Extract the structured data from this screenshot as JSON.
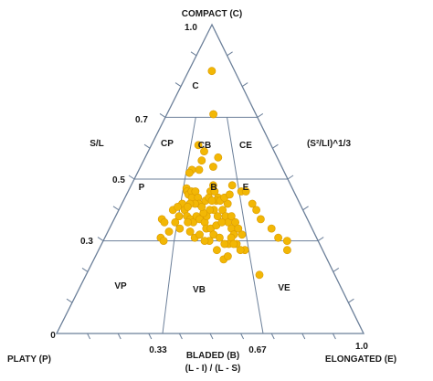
{
  "chart_data": {
    "type": "scatter",
    "title": "",
    "apex_labels": {
      "top": "COMPACT (C)",
      "left": "PLATY (P)",
      "right": "ELONGATED (E)"
    },
    "bottom_axis": {
      "label": "BLADED (B)",
      "sublabel": "(L - I) / (L - S)",
      "ticks": [
        "0",
        "0.33",
        "0.67",
        "1.0"
      ]
    },
    "left_axis": {
      "label": "S/L",
      "ticks": [
        "1.0",
        "0.7",
        "0.5",
        "0.3"
      ]
    },
    "right_axis": {
      "label": "(S²/LI)^1/3"
    },
    "regions": [
      "C",
      "CP",
      "CB",
      "CE",
      "P",
      "B",
      "E",
      "VP",
      "VB",
      "VE"
    ],
    "colors": {
      "points": "#f2b705",
      "point_edge": "#d99a00",
      "lines": "#6b7f99"
    },
    "xlim": [
      0,
      1
    ],
    "ylim": [
      0,
      1
    ],
    "points": [
      [
        0.503,
        0.85
      ],
      [
        0.522,
        0.71
      ],
      [
        0.392,
        0.61
      ],
      [
        0.444,
        0.59
      ],
      [
        0.43,
        0.56
      ],
      [
        0.553,
        0.57
      ],
      [
        0.417,
        0.53
      ],
      [
        0.367,
        0.53
      ],
      [
        0.353,
        0.52
      ],
      [
        0.515,
        0.54
      ],
      [
        0.633,
        0.48
      ],
      [
        0.683,
        0.46
      ],
      [
        0.35,
        0.47
      ],
      [
        0.356,
        0.46
      ],
      [
        0.367,
        0.45
      ],
      [
        0.383,
        0.46
      ],
      [
        0.389,
        0.44
      ],
      [
        0.406,
        0.46
      ],
      [
        0.425,
        0.44
      ],
      [
        0.433,
        0.42
      ],
      [
        0.411,
        0.42
      ],
      [
        0.383,
        0.42
      ],
      [
        0.339,
        0.42
      ],
      [
        0.358,
        0.4
      ],
      [
        0.319,
        0.36
      ],
      [
        0.294,
        0.4
      ],
      [
        0.317,
        0.41
      ],
      [
        0.375,
        0.38
      ],
      [
        0.394,
        0.37
      ],
      [
        0.411,
        0.36
      ],
      [
        0.425,
        0.38
      ],
      [
        0.442,
        0.37
      ],
      [
        0.469,
        0.36
      ],
      [
        0.478,
        0.34
      ],
      [
        0.5,
        0.34
      ],
      [
        0.514,
        0.32
      ],
      [
        0.494,
        0.3
      ],
      [
        0.472,
        0.3
      ],
      [
        0.497,
        0.46
      ],
      [
        0.514,
        0.48
      ],
      [
        0.522,
        0.46
      ],
      [
        0.542,
        0.44
      ],
      [
        0.531,
        0.43
      ],
      [
        0.553,
        0.43
      ],
      [
        0.564,
        0.4
      ],
      [
        0.578,
        0.38
      ],
      [
        0.589,
        0.36
      ],
      [
        0.603,
        0.34
      ],
      [
        0.611,
        0.32
      ],
      [
        0.597,
        0.31
      ],
      [
        0.583,
        0.29
      ],
      [
        0.564,
        0.29
      ],
      [
        0.542,
        0.31
      ],
      [
        0.528,
        0.35
      ],
      [
        0.556,
        0.36
      ],
      [
        0.536,
        0.38
      ],
      [
        0.517,
        0.4
      ],
      [
        0.494,
        0.4
      ],
      [
        0.478,
        0.38
      ],
      [
        0.461,
        0.39
      ],
      [
        0.45,
        0.41
      ],
      [
        0.469,
        0.43
      ],
      [
        0.488,
        0.44
      ],
      [
        0.506,
        0.43
      ],
      [
        0.608,
        0.38
      ],
      [
        0.625,
        0.36
      ],
      [
        0.636,
        0.34
      ],
      [
        0.65,
        0.32
      ],
      [
        0.594,
        0.42
      ],
      [
        0.578,
        0.44
      ],
      [
        0.611,
        0.45
      ],
      [
        0.619,
        0.29
      ],
      [
        0.528,
        0.27
      ],
      [
        0.556,
        0.24
      ],
      [
        0.575,
        0.25
      ],
      [
        0.383,
        0.36
      ],
      [
        0.4,
        0.33
      ],
      [
        0.425,
        0.31
      ],
      [
        0.447,
        0.32
      ],
      [
        0.347,
        0.34
      ],
      [
        0.333,
        0.38
      ],
      [
        0.372,
        0.41
      ],
      [
        0.247,
        0.37
      ],
      [
        0.264,
        0.36
      ],
      [
        0.264,
        0.31
      ],
      [
        0.281,
        0.3
      ],
      [
        0.297,
        0.33
      ],
      [
        0.711,
        0.46
      ],
      [
        0.733,
        0.42
      ],
      [
        0.747,
        0.4
      ],
      [
        0.758,
        0.37
      ],
      [
        0.8,
        0.34
      ],
      [
        0.842,
        0.27
      ],
      [
        0.856,
        0.3
      ],
      [
        0.819,
        0.31
      ],
      [
        0.697,
        0.19
      ],
      [
        0.653,
        0.27
      ],
      [
        0.633,
        0.27
      ],
      [
        0.606,
        0.29
      ]
    ]
  }
}
